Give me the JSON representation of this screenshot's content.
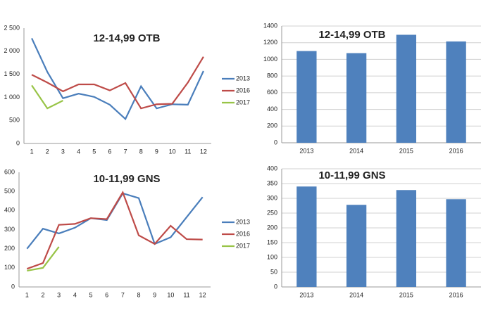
{
  "chart_data": [
    {
      "type": "line",
      "title": "12-14,99 OTB",
      "categories": [
        "1",
        "2",
        "3",
        "4",
        "5",
        "6",
        "7",
        "8",
        "9",
        "10",
        "11",
        "12"
      ],
      "series": [
        {
          "name": "2013",
          "color": "#4a7ebb",
          "values": [
            2280,
            1550,
            980,
            1080,
            1010,
            840,
            530,
            1240,
            760,
            850,
            840,
            1570
          ]
        },
        {
          "name": "2016",
          "color": "#be4b48",
          "values": [
            1490,
            1320,
            1130,
            1280,
            1280,
            1150,
            1310,
            760,
            850,
            860,
            1320,
            1880
          ]
        },
        {
          "name": "2017",
          "color": "#98c447",
          "values": [
            1260,
            760,
            930,
            null,
            null,
            null,
            null,
            null,
            null,
            null,
            null,
            null
          ]
        }
      ],
      "ylim": [
        0,
        2500
      ],
      "yticks": [
        0,
        500,
        {
          "value": 1000,
          "label": "1 000"
        },
        {
          "value": 1500,
          "label": "1 500"
        },
        {
          "value": 2000,
          "label": "2 000"
        },
        {
          "value": 2500,
          "label": "2 500"
        }
      ],
      "grid": false
    },
    {
      "type": "line",
      "title": "10-11,99 GNS",
      "categories": [
        "1",
        "2",
        "3",
        "4",
        "5",
        "6",
        "7",
        "8",
        "9",
        "10",
        "11",
        "12"
      ],
      "series": [
        {
          "name": "2013",
          "color": "#4a7ebb",
          "values": [
            200,
            305,
            280,
            310,
            360,
            350,
            490,
            465,
            225,
            260,
            365,
            470
          ]
        },
        {
          "name": "2016",
          "color": "#be4b48",
          "values": [
            95,
            125,
            325,
            330,
            360,
            355,
            495,
            270,
            225,
            320,
            250,
            248
          ]
        },
        {
          "name": "2017",
          "color": "#98c447",
          "values": [
            85,
            100,
            210,
            null,
            null,
            null,
            null,
            null,
            null,
            null,
            null,
            null
          ]
        }
      ],
      "ylim": [
        0,
        600
      ],
      "yticks": [
        0,
        100,
        200,
        300,
        400,
        500,
        600
      ],
      "grid": false
    },
    {
      "type": "bar",
      "title": "12-14,99 OTB",
      "categories": [
        "2013",
        "2014",
        "2015",
        "2016"
      ],
      "values": [
        1100,
        1075,
        1295,
        1215
      ],
      "color": "#4f81bd",
      "ylim": [
        0,
        1400
      ],
      "yticks": [
        0,
        200,
        400,
        600,
        800,
        1000,
        1200,
        1400
      ],
      "grid": true
    },
    {
      "type": "bar",
      "title": "10-11,99 GNS",
      "categories": [
        "2013",
        "2014",
        "2015",
        "2016"
      ],
      "values": [
        340,
        278,
        328,
        297
      ],
      "color": "#4f81bd",
      "ylim": [
        0,
        400
      ],
      "yticks": [
        0,
        50,
        100,
        150,
        200,
        250,
        300,
        350,
        400
      ],
      "grid": true
    }
  ]
}
